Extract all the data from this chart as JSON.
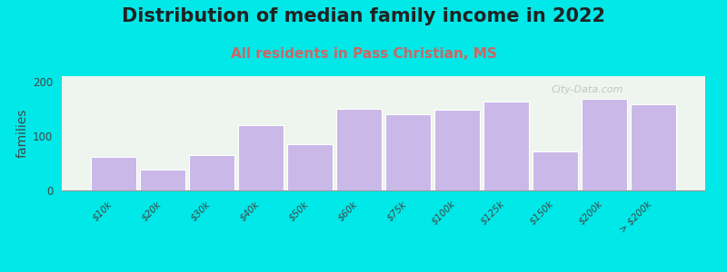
{
  "title": "Distribution of median family income in 2022",
  "subtitle": "All residents in Pass Christian, MS",
  "ylabel": "families",
  "categories": [
    "$10k",
    "$20k",
    "$30k",
    "$40k",
    "$50k",
    "$60k",
    "$75k",
    "$100k",
    "$125k",
    "$150k",
    "$200k",
    "> $200k"
  ],
  "values": [
    62,
    38,
    65,
    120,
    85,
    150,
    140,
    148,
    163,
    72,
    168,
    158
  ],
  "bar_color": "#c9b8e8",
  "bar_edge_color": "#ffffff",
  "background_color": "#00e8e8",
  "plot_bg_color": "#eef5ee",
  "ylim": [
    0,
    210
  ],
  "yticks": [
    0,
    100,
    200
  ],
  "title_fontsize": 15,
  "subtitle_fontsize": 11,
  "ylabel_fontsize": 10,
  "watermark": "City-Data.com",
  "title_color": "#222222",
  "subtitle_color": "#cc6666"
}
